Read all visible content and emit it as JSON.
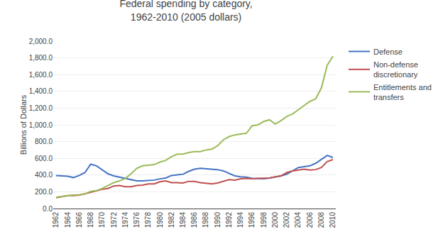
{
  "chart_data": {
    "type": "line",
    "title": "Federal spending by category,\n1962-2010 (2005 dollars)",
    "ylabel": "Billions of Dollars",
    "x": [
      1962,
      1963,
      1964,
      1965,
      1966,
      1967,
      1968,
      1969,
      1970,
      1971,
      1972,
      1973,
      1974,
      1975,
      1976,
      1977,
      1978,
      1979,
      1980,
      1981,
      1982,
      1983,
      1984,
      1985,
      1986,
      1987,
      1988,
      1989,
      1990,
      1991,
      1992,
      1993,
      1994,
      1995,
      1996,
      1997,
      1998,
      1999,
      2000,
      2001,
      2002,
      2003,
      2004,
      2005,
      2006,
      2007,
      2008,
      2009,
      2010
    ],
    "series": [
      {
        "name": "Defense",
        "color": "#4472C4",
        "values": [
          395,
          390,
          385,
          370,
          395,
          430,
          530,
          510,
          465,
          415,
          390,
          375,
          360,
          340,
          330,
          330,
          335,
          340,
          355,
          365,
          395,
          400,
          410,
          445,
          470,
          480,
          475,
          470,
          465,
          450,
          420,
          390,
          380,
          375,
          360,
          360,
          355,
          365,
          375,
          390,
          410,
          450,
          490,
          500,
          510,
          540,
          590,
          635,
          610
        ]
      },
      {
        "name": "Non-defense\ndiscretionary",
        "color": "#C0504D",
        "values": [
          130,
          140,
          155,
          155,
          160,
          175,
          195,
          210,
          230,
          240,
          270,
          275,
          260,
          260,
          275,
          280,
          295,
          295,
          320,
          330,
          310,
          310,
          305,
          325,
          325,
          310,
          300,
          295,
          305,
          325,
          345,
          340,
          355,
          360,
          355,
          360,
          360,
          365,
          380,
          390,
          430,
          450,
          460,
          470,
          460,
          465,
          490,
          560,
          585
        ]
      },
      {
        "name": "Entitlements and\ntransfers",
        "color": "#9BBB59",
        "values": [
          135,
          145,
          155,
          160,
          165,
          175,
          205,
          215,
          240,
          275,
          310,
          330,
          360,
          415,
          480,
          510,
          520,
          525,
          555,
          575,
          620,
          650,
          650,
          670,
          680,
          680,
          700,
          710,
          750,
          820,
          860,
          880,
          890,
          900,
          990,
          1000,
          1040,
          1060,
          1010,
          1050,
          1100,
          1130,
          1180,
          1230,
          1280,
          1310,
          1440,
          1710,
          1820
        ]
      }
    ],
    "xlim": [
      1961.5,
      2010.5
    ],
    "xticks": [
      1962,
      1964,
      1966,
      1968,
      1970,
      1972,
      1974,
      1976,
      1978,
      1980,
      1982,
      1984,
      1986,
      1988,
      1990,
      1992,
      1994,
      1996,
      1998,
      2000,
      2002,
      2004,
      2006,
      2008,
      2010
    ],
    "ylim": [
      0,
      2000
    ],
    "yticks": [
      {
        "value": 0,
        "label": "0.0"
      },
      {
        "value": 200,
        "label": "200.0"
      },
      {
        "value": 400,
        "label": "400.0"
      },
      {
        "value": 600,
        "label": "600.0"
      },
      {
        "value": 800,
        "label": "800.0"
      },
      {
        "value": 1000,
        "label": "1,000.0"
      },
      {
        "value": 1200,
        "label": "1,200.0"
      },
      {
        "value": 1400,
        "label": "1,400.0"
      },
      {
        "value": 1600,
        "label": "1,600.0"
      },
      {
        "value": 1800,
        "label": "1,800.0"
      },
      {
        "value": 2000,
        "label": "2,000.0"
      }
    ],
    "grid": true,
    "legend": "right"
  }
}
